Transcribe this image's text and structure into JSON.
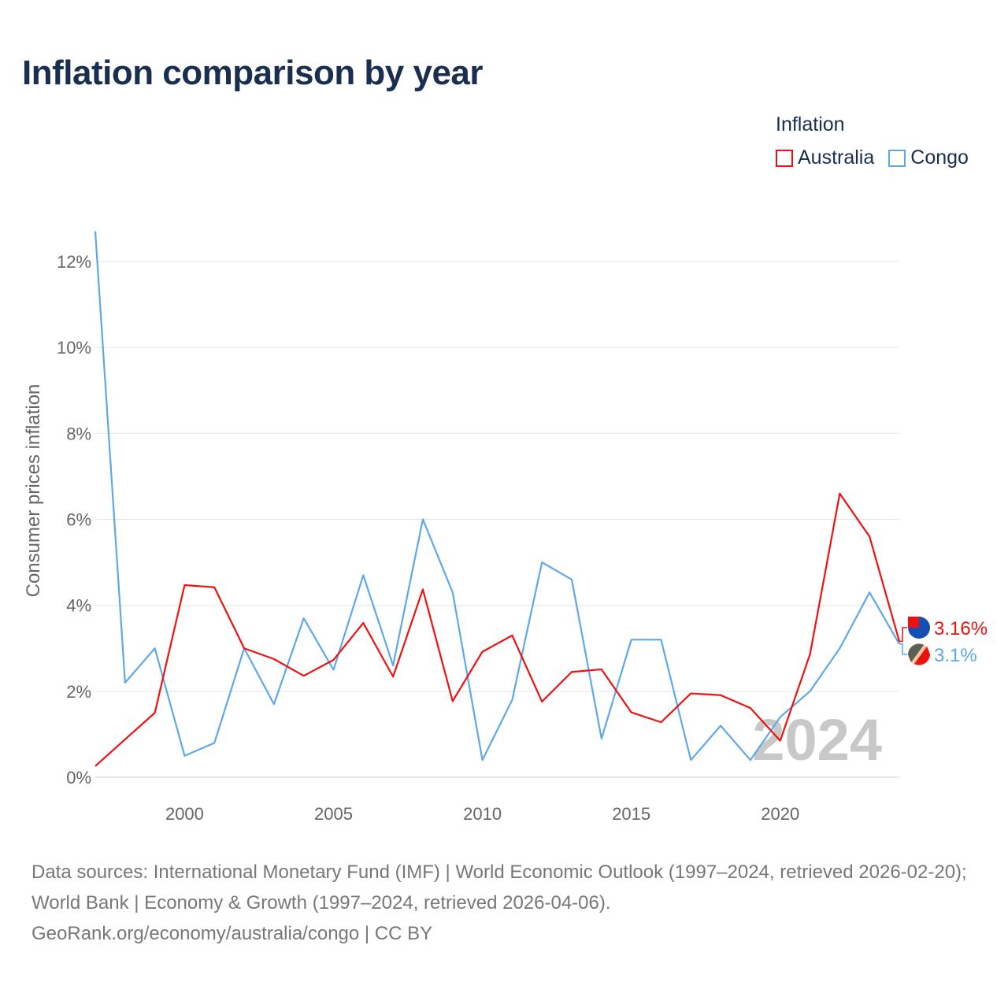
{
  "title": "Inflation comparison by year",
  "legend": {
    "title": "Inflation",
    "items": [
      {
        "label": "Australia",
        "color": "#ee1111"
      },
      {
        "label": "Congo",
        "color": "#5fa8e8"
      }
    ]
  },
  "source": {
    "line1": "Data sources: International Monetary Fund (IMF) | World Economic Outlook (1997–2024, retrieved 2026-02-20); World Bank | Economy & Growth (1997–2024, retrieved 2026-04-06).",
    "line2": "GeoRank.org/economy/australia/congo | CC BY"
  },
  "chart_data": {
    "type": "line",
    "title": "Inflation comparison by year",
    "xlabel": "",
    "ylabel": "Consumer prices inflation",
    "xlim": [
      1997,
      2024
    ],
    "ylim": [
      0,
      12.7
    ],
    "yticks": [
      0,
      2,
      4,
      6,
      8,
      10,
      12
    ],
    "ytick_labels": [
      "0%",
      "2%",
      "4%",
      "6%",
      "8%",
      "10%",
      "12%"
    ],
    "xticks": [
      2000,
      2005,
      2010,
      2015,
      2020
    ],
    "xtick_labels": [
      "2000",
      "2005",
      "2010",
      "2015",
      "2020"
    ],
    "grid": true,
    "watermark_year": "2024",
    "x": [
      1997,
      1998,
      1999,
      2000,
      2001,
      2002,
      2003,
      2004,
      2005,
      2006,
      2007,
      2008,
      2009,
      2010,
      2011,
      2012,
      2013,
      2014,
      2015,
      2016,
      2017,
      2018,
      2019,
      2020,
      2021,
      2022,
      2023,
      2024
    ],
    "series": [
      {
        "name": "Australia",
        "color": "#ee1111",
        "end_label": "3.16%",
        "values": [
          0.26,
          0.88,
          1.5,
          4.47,
          4.42,
          3.0,
          2.75,
          2.36,
          2.73,
          3.59,
          2.34,
          4.37,
          1.77,
          2.92,
          3.3,
          1.76,
          2.45,
          2.51,
          1.51,
          1.28,
          1.95,
          1.91,
          1.61,
          0.85,
          2.86,
          6.6,
          5.6,
          3.16
        ]
      },
      {
        "name": "Congo",
        "color": "#5fa8e8",
        "end_label": "3.1%",
        "values": [
          12.7,
          2.2,
          3.0,
          0.5,
          0.8,
          3.0,
          1.7,
          3.7,
          2.5,
          4.7,
          2.6,
          6.0,
          4.3,
          0.4,
          1.8,
          5.0,
          4.6,
          0.9,
          3.2,
          3.2,
          0.4,
          1.2,
          0.4,
          1.4,
          2.0,
          3.0,
          4.3,
          3.1
        ]
      }
    ]
  }
}
